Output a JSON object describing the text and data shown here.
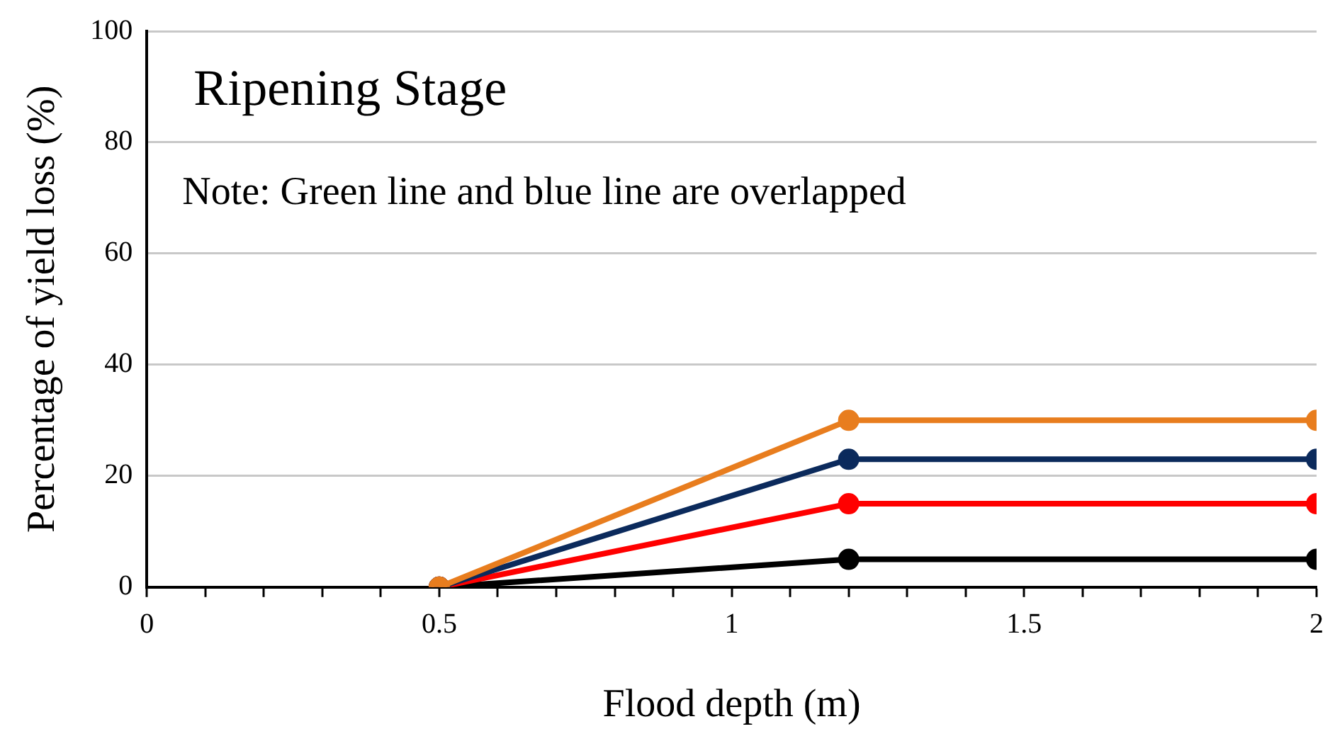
{
  "chart_data": {
    "type": "line",
    "title": "Ripening Stage",
    "annotations": [
      "Note: Green line and blue line are overlapped"
    ],
    "xlabel": "Flood depth (m)",
    "ylabel": "Percentage of yield loss (%)",
    "x": [
      0.5,
      1.2,
      2
    ],
    "series": [
      {
        "color": "#e87d1e",
        "values": [
          0,
          30,
          30
        ]
      },
      {
        "color": "#0b2a5c",
        "values": [
          0,
          23,
          23
        ]
      },
      {
        "color": "#ff0000",
        "values": [
          0,
          15,
          15
        ]
      },
      {
        "color": "#000000",
        "values": [
          0,
          5,
          5
        ]
      }
    ],
    "xlim": [
      0,
      2
    ],
    "xticks": [
      0,
      {
        "value": 0.1,
        "label": null
      },
      {
        "value": 0.2,
        "label": null
      },
      {
        "value": 0.3,
        "label": null
      },
      {
        "value": 0.4,
        "label": null
      },
      0.5,
      {
        "value": 0.6,
        "label": null
      },
      {
        "value": 0.7,
        "label": null
      },
      {
        "value": 0.8,
        "label": null
      },
      {
        "value": 0.9,
        "label": null
      },
      1,
      {
        "value": 1.1,
        "label": null
      },
      {
        "value": 1.2,
        "label": null
      },
      {
        "value": 1.3,
        "label": null
      },
      {
        "value": 1.4,
        "label": null
      },
      1.5,
      {
        "value": 1.6,
        "label": null
      },
      {
        "value": 1.7,
        "label": null
      },
      {
        "value": 1.8,
        "label": null
      },
      {
        "value": 1.9,
        "label": null
      },
      2
    ],
    "ylim": [
      0,
      100
    ],
    "yticks": [
      0,
      20,
      40,
      60,
      80,
      100
    ],
    "grid": "y",
    "marker": "circle",
    "line_style": "solid",
    "legend": false
  }
}
